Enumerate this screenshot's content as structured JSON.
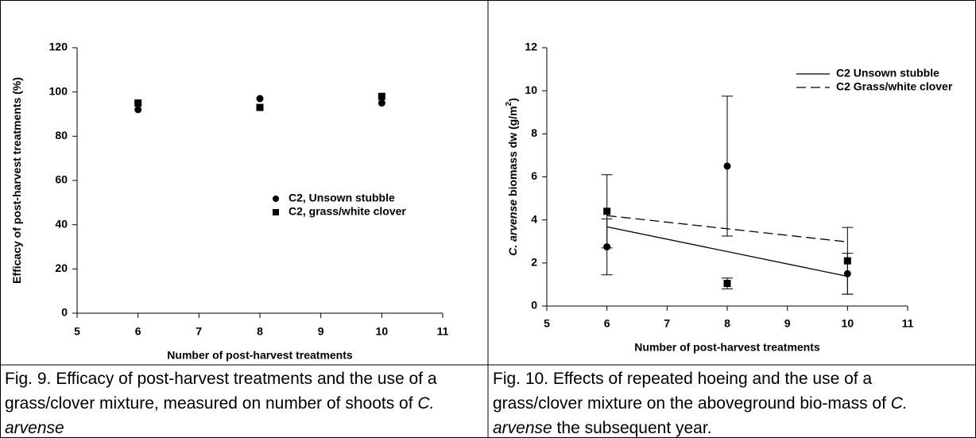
{
  "chart_data": [
    {
      "type": "scatter",
      "xlabel": "Number of post-harvest treatments",
      "ylabel": [
        {
          "text": "Efficacy of post-harvest treatments (%)"
        }
      ],
      "xlim": [
        5,
        11
      ],
      "xticks": [
        5,
        6,
        7,
        8,
        9,
        10,
        11
      ],
      "ylim": [
        0,
        120
      ],
      "yticks": [
        0,
        20,
        40,
        60,
        80,
        100,
        120
      ],
      "grid": false,
      "legend": "center-right",
      "series": [
        {
          "name": "C2, Unsown stubble",
          "marker": "circle",
          "color": "#000000",
          "x": [
            6,
            8,
            10
          ],
          "values": [
            92,
            97,
            95
          ]
        },
        {
          "name": "C2, grass/white clover",
          "marker": "square",
          "color": "#000000",
          "x": [
            6,
            8,
            10
          ],
          "values": [
            95,
            93,
            98
          ]
        }
      ]
    },
    {
      "type": "scatter",
      "xlabel": "Number of post-harvest treatments",
      "ylabel": [
        {
          "text": "C. arvense",
          "italic": true
        },
        {
          "text": " biomass dw (g/m"
        },
        {
          "text": "2",
          "sup": true
        },
        {
          "text": ")"
        }
      ],
      "xlim": [
        5,
        11
      ],
      "xticks": [
        5,
        6,
        7,
        8,
        9,
        10,
        11
      ],
      "ylim": [
        0,
        12
      ],
      "yticks": [
        0,
        2,
        4,
        6,
        8,
        10,
        12
      ],
      "grid": false,
      "legend": "upper-right",
      "series": [
        {
          "name": "C2 Unsown stubble",
          "type": "line",
          "dash": "solid",
          "color": "#000000",
          "x": [
            6,
            10
          ],
          "values": [
            3.68,
            1.38
          ]
        },
        {
          "name": "C2 Grass/white clover",
          "type": "line",
          "dash": "dashed",
          "color": "#000000",
          "x": [
            6,
            10
          ],
          "values": [
            4.2,
            2.98
          ]
        },
        {
          "type": "scatter",
          "marker": "circle",
          "color": "#000000",
          "x": [
            6,
            8,
            10
          ],
          "values": [
            2.75,
            6.5,
            1.5
          ],
          "errors": [
            1.3,
            3.25,
            0.95
          ]
        },
        {
          "type": "scatter",
          "marker": "square",
          "color": "#000000",
          "x": [
            6,
            8,
            10
          ],
          "values": [
            4.4,
            1.05,
            2.1
          ],
          "errors": [
            1.7,
            0.25,
            1.55
          ]
        }
      ]
    }
  ],
  "captions": [
    [
      {
        "text": "Fig. 9. Efficacy of post-harvest treatments and the use of a grass/clover mixture, measured on number of shoots of "
      },
      {
        "text": "C. arvense",
        "italic": true
      }
    ],
    [
      {
        "text": "Fig. 10. Effects of repeated hoeing and the use of a grass/clover mixture on the aboveground bio-mass of "
      },
      {
        "text": "C. arvense",
        "italic": true
      },
      {
        "text": " the subsequent year."
      }
    ]
  ]
}
